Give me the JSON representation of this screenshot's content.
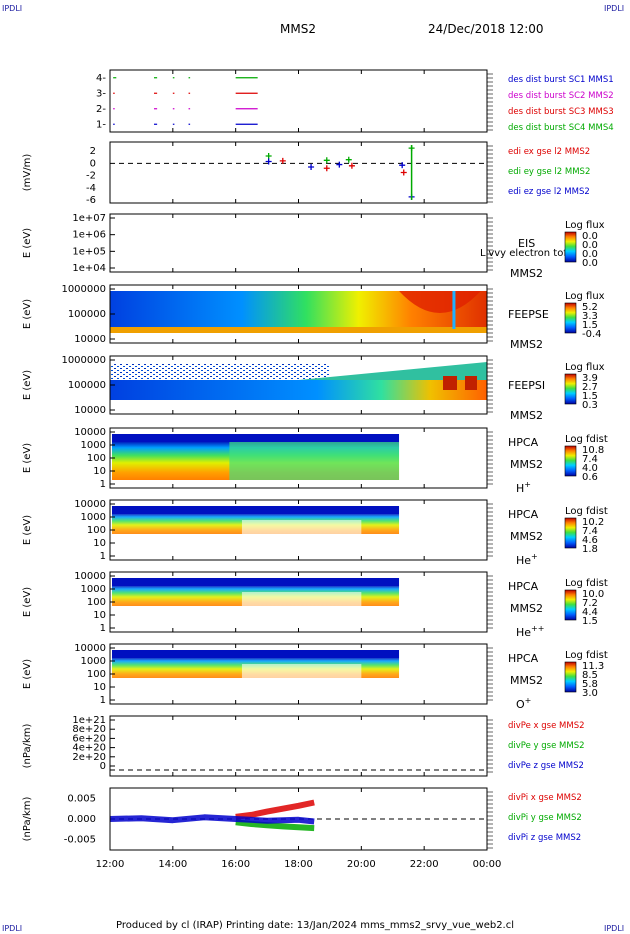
{
  "header": {
    "corner_label": "IPDLI",
    "spacecraft": "MMS2",
    "datetime": "24/Dec/2018 12:00"
  },
  "footer": {
    "text": "Produced by cl (IRAP)   Printing date: 13/Jan/2024   mms_mms2_srvy_vue_web2.cl"
  },
  "colors": {
    "blue": "#0000cc",
    "red": "#dd0000",
    "green": "#00aa00",
    "magenta": "#cc00cc"
  },
  "time_axis": {
    "ticks": [
      "12:00",
      "14:00",
      "16:00",
      "18:00",
      "20:00",
      "22:00",
      "00:00"
    ],
    "start_hour": 12,
    "end_hour": 24
  },
  "chart_data": [
    {
      "type": "scatter",
      "panel": "des-dist-burst",
      "yticks": [
        "1-",
        "2-",
        "3-",
        "4-"
      ],
      "ylim": [
        0.5,
        4.5
      ],
      "legend": [
        {
          "text": "des dist burst SC1 MMS1",
          "color": "#0000cc"
        },
        {
          "text": "des dist burst SC2 MMS2",
          "color": "#cc00cc"
        },
        {
          "text": "des dist burst SC3 MMS3",
          "color": "#dd0000"
        },
        {
          "text": "des dist burst SC4 MMS4",
          "color": "#00aa00"
        }
      ],
      "series": [
        {
          "level": 4,
          "color": "#00aa00",
          "segments": [
            [
              12.1,
              12.2
            ],
            [
              13.4,
              13.5
            ],
            [
              14.0,
              14.05
            ],
            [
              14.5,
              14.55
            ],
            [
              16.0,
              16.7
            ]
          ]
        },
        {
          "level": 3,
          "color": "#dd0000",
          "segments": [
            [
              12.1,
              12.15
            ],
            [
              13.4,
              13.5
            ],
            [
              14.0,
              14.05
            ],
            [
              14.5,
              14.55
            ],
            [
              16.0,
              16.7
            ]
          ]
        },
        {
          "level": 2,
          "color": "#cc00cc",
          "segments": [
            [
              12.1,
              12.15
            ],
            [
              13.4,
              13.5
            ],
            [
              14.0,
              14.05
            ],
            [
              14.5,
              14.55
            ],
            [
              16.0,
              16.7
            ]
          ]
        },
        {
          "level": 1,
          "color": "#0000cc",
          "segments": [
            [
              12.1,
              12.15
            ],
            [
              13.4,
              13.5
            ],
            [
              14.0,
              14.05
            ],
            [
              14.5,
              14.55
            ],
            [
              16.0,
              16.7
            ]
          ]
        }
      ]
    },
    {
      "type": "scatter",
      "panel": "edi-e",
      "ylabel": "(mV/m)",
      "yticks": [
        "2",
        "0",
        "-2",
        "-4",
        "-6"
      ],
      "ylim": [
        -6.5,
        3.5
      ],
      "legend": [
        {
          "text": "edi ex gse l2 MMS2",
          "color": "#dd0000"
        },
        {
          "text": "edi ey gse l2 MMS2",
          "color": "#00aa00"
        },
        {
          "text": "edi ez gse l2 MMS2",
          "color": "#0000cc"
        }
      ],
      "points": [
        {
          "t": 17.05,
          "y": 1.2,
          "color": "#00aa00"
        },
        {
          "t": 17.05,
          "y": 0.3,
          "color": "#0000cc"
        },
        {
          "t": 17.5,
          "y": 0.4,
          "color": "#dd0000"
        },
        {
          "t": 18.4,
          "y": -0.6,
          "color": "#0000cc"
        },
        {
          "t": 18.9,
          "y": 0.5,
          "color": "#00aa00"
        },
        {
          "t": 18.9,
          "y": -0.8,
          "color": "#dd0000"
        },
        {
          "t": 19.3,
          "y": -0.2,
          "color": "#0000cc"
        },
        {
          "t": 19.6,
          "y": 0.6,
          "color": "#00aa00"
        },
        {
          "t": 19.7,
          "y": -0.4,
          "color": "#dd0000"
        },
        {
          "t": 21.3,
          "y": -0.3,
          "color": "#0000cc"
        },
        {
          "t": 21.35,
          "y": -1.5,
          "color": "#dd0000"
        },
        {
          "t": 21.6,
          "y": 2.5,
          "color": "#00aa00"
        },
        {
          "t": 21.6,
          "y": -5.5,
          "color": "#0000cc"
        }
      ]
    },
    {
      "type": "heatmap",
      "panel": "eis",
      "ylabel": "E (eV)",
      "yticks": [
        "1e+07",
        "1e+06",
        "1e+05",
        "1e+04"
      ],
      "instrument": "EIS",
      "instrument2": "MMS2",
      "overlay": "Livvy electron tof",
      "colorbar_title": "Log flux",
      "colorbar_values": [
        "0.0",
        "0.0",
        "0.0",
        "0.0"
      ]
    },
    {
      "type": "heatmap",
      "panel": "feepse",
      "ylabel": "E (eV)",
      "yticks": [
        "1000000",
        "100000",
        "10000"
      ],
      "instrument": "FEEPSE",
      "instrument2": "MMS2",
      "colorbar_title": "Log flux",
      "colorbar_values": [
        "5.2",
        "3.3",
        "1.5",
        "-0.4"
      ]
    },
    {
      "type": "heatmap",
      "panel": "feepsi",
      "ylabel": "E (eV)",
      "yticks": [
        "1000000",
        "100000",
        "10000"
      ],
      "instrument": "FEEPSI",
      "instrument2": "MMS2",
      "colorbar_title": "Log flux",
      "colorbar_values": [
        "3.9",
        "2.7",
        "1.5",
        "0.3"
      ]
    },
    {
      "type": "heatmap",
      "panel": "hpca-h",
      "ylabel": "E (eV)",
      "yticks": [
        "10000",
        "1000",
        "100",
        "10",
        "1"
      ],
      "instrument": "HPCA",
      "instrument2": "MMS2",
      "species": "H",
      "species_sup": "+",
      "colorbar_title": "Log fdist",
      "colorbar_values": [
        "10.8",
        "7.4",
        "4.0",
        "0.6"
      ]
    },
    {
      "type": "heatmap",
      "panel": "hpca-he",
      "ylabel": "E (eV)",
      "yticks": [
        "10000",
        "1000",
        "100",
        "10",
        "1"
      ],
      "instrument": "HPCA",
      "instrument2": "MMS2",
      "species": "He",
      "species_sup": "+",
      "colorbar_title": "Log fdist",
      "colorbar_values": [
        "10.2",
        "7.4",
        "4.6",
        "1.8"
      ]
    },
    {
      "type": "heatmap",
      "panel": "hpca-hepp",
      "ylabel": "E (eV)",
      "yticks": [
        "10000",
        "1000",
        "100",
        "10",
        "1"
      ],
      "instrument": "HPCA",
      "instrument2": "MMS2",
      "species": "He",
      "species_sup": "++",
      "colorbar_title": "Log fdist",
      "colorbar_values": [
        "10.0",
        "7.2",
        "4.4",
        "1.5"
      ]
    },
    {
      "type": "heatmap",
      "panel": "hpca-o",
      "ylabel": "E (eV)",
      "yticks": [
        "10000",
        "1000",
        "100",
        "10",
        "1"
      ],
      "instrument": "HPCA",
      "instrument2": "MMS2",
      "species": "O",
      "species_sup": "+",
      "colorbar_title": "Log fdist",
      "colorbar_values": [
        "11.3",
        "8.5",
        "5.8",
        "3.0"
      ]
    },
    {
      "type": "line",
      "panel": "divpe",
      "ylabel": "(nPa/km)",
      "yticks": [
        "1e+21",
        "8e+20",
        "6e+20",
        "4e+20",
        "2e+20",
        "0"
      ],
      "ylim": [
        0,
        1e+21
      ],
      "legend": [
        {
          "text": "divPe x gse MMS2",
          "color": "#dd0000"
        },
        {
          "text": "divPe y gse MMS2",
          "color": "#00aa00"
        },
        {
          "text": "divPe z gse MMS2",
          "color": "#0000cc"
        }
      ]
    },
    {
      "type": "line",
      "panel": "divpi",
      "ylabel": "(nPa/km)",
      "yticks": [
        "0.005",
        "0.000",
        "-0.005"
      ],
      "ylim": [
        -0.0075,
        0.0075
      ],
      "legend": [
        {
          "text": "divPi x gse MMS2",
          "color": "#dd0000"
        },
        {
          "text": "divPi y gse MMS2",
          "color": "#00aa00"
        },
        {
          "text": "divPi z gse MMS2",
          "color": "#0000cc"
        }
      ],
      "series": [
        {
          "name": "divPi x gse MMS2",
          "color": "#dd0000",
          "t": [
            16.0,
            16.5,
            17.0,
            17.5,
            18.0,
            18.5
          ],
          "y": [
            0.0005,
            0.001,
            0.0018,
            0.0025,
            0.0032,
            0.004
          ]
        },
        {
          "name": "divPi y gse MMS2",
          "color": "#00aa00",
          "t": [
            16.0,
            16.5,
            17.0,
            17.5,
            18.0,
            18.5
          ],
          "y": [
            -0.0008,
            -0.0012,
            -0.0015,
            -0.0018,
            -0.002,
            -0.0022
          ]
        },
        {
          "name": "divPi z gse MMS2",
          "color": "#0000cc",
          "t": [
            12.0,
            13.0,
            14.0,
            15.0,
            16.0,
            17.0,
            18.0,
            18.5
          ],
          "y": [
            0.0,
            0.0002,
            -0.0003,
            0.0004,
            0.0,
            -0.0004,
            -0.0002,
            -0.0006
          ]
        }
      ]
    }
  ]
}
